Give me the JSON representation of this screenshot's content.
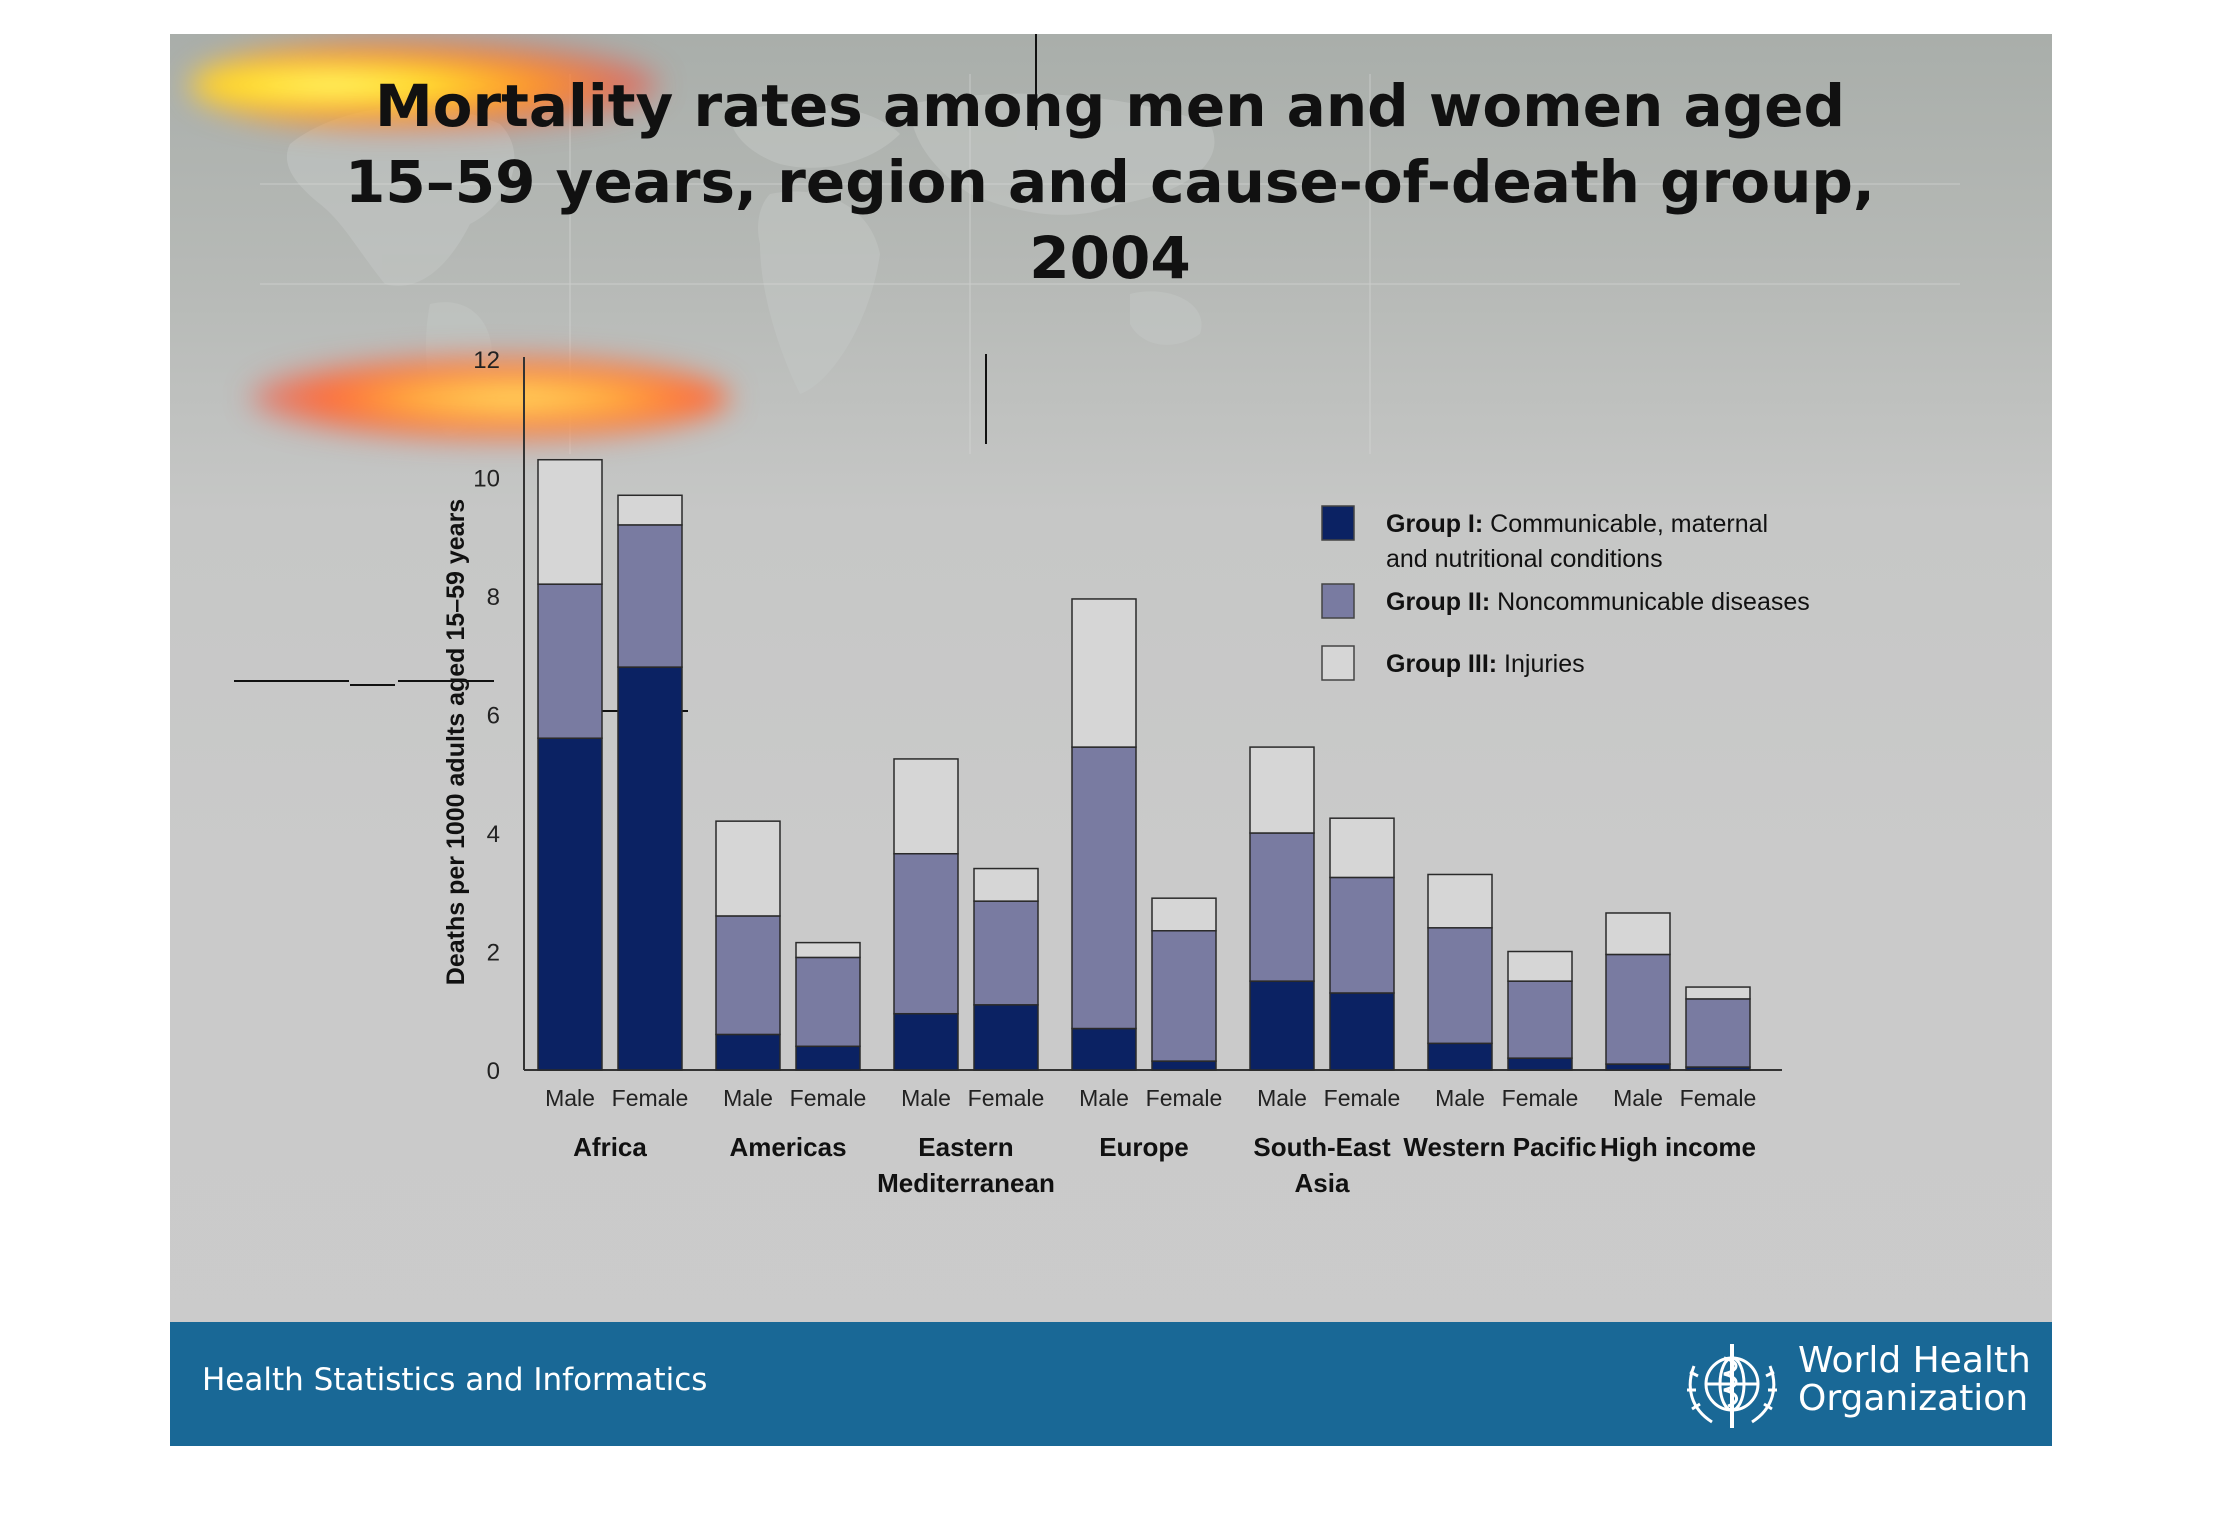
{
  "slide": {
    "title_lines": [
      "Mortality rates among men and women aged",
      "15–59 years, region and cause-of-death group,",
      "2004"
    ],
    "footer_text": "Health Statistics and Informatics",
    "org_name_lines": [
      "World Health",
      "Organization"
    ]
  },
  "colors": {
    "group1": "#0b2263",
    "group2": "#797ba1",
    "group3": "#d6d6d6",
    "footer": "#196896",
    "slide_background": "#c8c8c8"
  },
  "icons": {
    "org_emblem": "who-emblem-icon",
    "background": "world-map-icon"
  },
  "chart_data": {
    "type": "bar",
    "stacked": true,
    "ylabel": "Deaths per 1000 adults aged 15–59 years",
    "ylim": [
      0,
      12
    ],
    "yticks": [
      0,
      2,
      4,
      6,
      8,
      10,
      12
    ],
    "grid": false,
    "legend_position": "top-right",
    "legend": [
      {
        "bold": "Group I:",
        "text": "Communicable, maternal",
        "text2": "and nutritional conditions"
      },
      {
        "bold": "Group II:",
        "text": "Noncommunicable diseases",
        "text2": ""
      },
      {
        "bold": "Group III:",
        "text": "Injuries",
        "text2": ""
      }
    ],
    "regions": [
      {
        "name_lines": [
          "Africa"
        ],
        "bars": [
          {
            "label": "Male",
            "values": [
              5.6,
              2.6,
              2.1
            ]
          },
          {
            "label": "Female",
            "values": [
              6.8,
              2.4,
              0.5
            ]
          }
        ]
      },
      {
        "name_lines": [
          "Americas"
        ],
        "bars": [
          {
            "label": "Male",
            "values": [
              0.6,
              2.0,
              1.6
            ]
          },
          {
            "label": "Female",
            "values": [
              0.4,
              1.5,
              0.25
            ]
          }
        ]
      },
      {
        "name_lines": [
          "Eastern",
          "Mediterranean"
        ],
        "bars": [
          {
            "label": "Male",
            "values": [
              0.95,
              2.7,
              1.6
            ]
          },
          {
            "label": "Female",
            "values": [
              1.1,
              1.75,
              0.55
            ]
          }
        ]
      },
      {
        "name_lines": [
          "Europe"
        ],
        "bars": [
          {
            "label": "Male",
            "values": [
              0.7,
              4.75,
              2.5
            ]
          },
          {
            "label": "Female",
            "values": [
              0.15,
              2.2,
              0.55
            ]
          }
        ]
      },
      {
        "name_lines": [
          "South-East",
          "Asia"
        ],
        "bars": [
          {
            "label": "Male",
            "values": [
              1.5,
              2.5,
              1.45
            ]
          },
          {
            "label": "Female",
            "values": [
              1.3,
              1.95,
              1.0
            ]
          }
        ]
      },
      {
        "name_lines": [
          "Western Pacific"
        ],
        "bars": [
          {
            "label": "Male",
            "values": [
              0.45,
              1.95,
              0.9
            ]
          },
          {
            "label": "Female",
            "values": [
              0.2,
              1.3,
              0.5
            ]
          }
        ]
      },
      {
        "name_lines": [
          "High income"
        ],
        "bars": [
          {
            "label": "Male",
            "values": [
              0.1,
              1.85,
              0.7
            ]
          },
          {
            "label": "Female",
            "values": [
              0.05,
              1.15,
              0.2
            ]
          }
        ]
      }
    ]
  }
}
